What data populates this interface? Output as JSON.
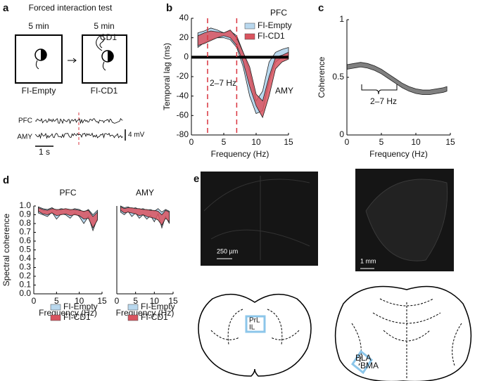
{
  "panel_a": {
    "letter": "a",
    "title": "Forced interaction test",
    "durations": [
      "5 min",
      "5 min"
    ],
    "stimulus": "CD1",
    "conditions": [
      "FI-Empty",
      "FI-CD1"
    ],
    "traces": [
      "PFC",
      "AMY"
    ],
    "scale_y": "4 mV",
    "scale_x": "1 s"
  },
  "chart_data": [
    {
      "type": "band",
      "panel_label": "b",
      "xlabel": "Frequency (Hz)",
      "ylabel": "Temporal lag (ms)",
      "xlim": [
        0,
        15
      ],
      "ylim": [
        -80,
        40
      ],
      "xticks": [
        0,
        5,
        10,
        15
      ],
      "yticks": [
        -80,
        -60,
        -40,
        -20,
        0,
        20,
        40
      ],
      "vlines": [
        2.5,
        7
      ],
      "vline_color": "#d9343f",
      "hline": 0,
      "legend_title": "PFC",
      "legend": "upper right",
      "annotations": [
        "2–7 Hz",
        "AMY"
      ],
      "x": [
        1,
        2,
        3,
        4,
        5,
        6,
        7,
        8,
        9,
        10,
        11,
        12,
        13,
        14,
        15
      ],
      "series": [
        {
          "name": "FI-Empty",
          "color": "#b9d8ee",
          "low": [
            10,
            15,
            18,
            20,
            20,
            18,
            10,
            -10,
            -40,
            -58,
            -55,
            -25,
            -5,
            0,
            2
          ],
          "high": [
            25,
            27,
            30,
            28,
            25,
            27,
            22,
            5,
            -15,
            -45,
            -35,
            -5,
            5,
            8,
            10
          ]
        },
        {
          "name": "FI-CD1",
          "color": "#d9545f",
          "low": [
            12,
            14,
            17,
            20,
            22,
            20,
            12,
            -5,
            -30,
            -50,
            -62,
            -40,
            -12,
            -5,
            -2
          ],
          "high": [
            22,
            25,
            27,
            26,
            25,
            28,
            20,
            5,
            -10,
            -38,
            -45,
            -20,
            0,
            2,
            5
          ]
        }
      ]
    },
    {
      "type": "band",
      "panel_label": "c",
      "xlabel": "Frequency (Hz)",
      "ylabel": "Coherence",
      "xlim": [
        0,
        15
      ],
      "ylim": [
        0,
        1
      ],
      "xticks": [
        0,
        5,
        10,
        15
      ],
      "yticks": [
        0,
        0.5,
        1
      ],
      "annotations": [
        "2–7 Hz"
      ],
      "x": [
        0,
        1,
        2,
        3,
        4,
        5,
        6,
        7,
        8,
        9,
        10,
        11,
        12,
        13,
        14,
        14.5
      ],
      "series": [
        {
          "color": "#808080",
          "low": [
            0.57,
            0.58,
            0.59,
            0.58,
            0.56,
            0.53,
            0.49,
            0.45,
            0.41,
            0.38,
            0.36,
            0.35,
            0.35,
            0.36,
            0.37,
            0.38
          ],
          "high": [
            0.61,
            0.62,
            0.63,
            0.62,
            0.6,
            0.57,
            0.53,
            0.49,
            0.45,
            0.42,
            0.4,
            0.39,
            0.39,
            0.4,
            0.41,
            0.42
          ]
        }
      ]
    },
    {
      "type": "band",
      "panel_label": "d",
      "title": "PFC",
      "xlabel": "Frequency (Hz)",
      "ylabel": "Spectral coherence",
      "xlim": [
        0,
        15
      ],
      "ylim": [
        0,
        1
      ],
      "xticks": [
        0,
        5,
        10,
        15
      ],
      "yticks": [
        {
          "value": 0,
          "label": "0.0"
        },
        {
          "value": 0.1,
          "label": "0.1"
        },
        {
          "value": 0.2,
          "label": "0.2"
        },
        {
          "value": 0.3,
          "label": "0.3"
        },
        {
          "value": 0.4,
          "label": "0.4"
        },
        {
          "value": 0.5,
          "label": "0.5"
        },
        {
          "value": 0.6,
          "label": "0.6"
        },
        {
          "value": 0.7,
          "label": "0.7"
        },
        {
          "value": 0.8,
          "label": "0.8"
        },
        {
          "value": 0.9,
          "label": "0.9"
        },
        {
          "value": 1,
          "label": "1.0"
        }
      ],
      "legend": "lower left",
      "x": [
        1,
        2,
        3,
        4,
        5,
        6,
        7,
        8,
        9,
        10,
        11,
        12,
        13,
        14
      ],
      "series": [
        {
          "name": "FI-Empty",
          "color": "#b9d8ee",
          "low": [
            0.92,
            0.9,
            0.88,
            0.93,
            0.85,
            0.91,
            0.9,
            0.86,
            0.92,
            0.88,
            0.8,
            0.88,
            0.72,
            0.86
          ],
          "high": [
            0.99,
            0.97,
            0.96,
            0.98,
            0.95,
            0.97,
            0.96,
            0.95,
            0.97,
            0.96,
            0.93,
            0.96,
            0.9,
            0.95
          ]
        },
        {
          "name": "FI-CD1",
          "color": "#d9545f",
          "low": [
            0.94,
            0.91,
            0.9,
            0.92,
            0.89,
            0.9,
            0.91,
            0.89,
            0.9,
            0.89,
            0.85,
            0.86,
            0.75,
            0.84
          ],
          "high": [
            0.98,
            0.96,
            0.95,
            0.97,
            0.96,
            0.96,
            0.97,
            0.96,
            0.96,
            0.95,
            0.94,
            0.95,
            0.88,
            0.93
          ]
        }
      ]
    },
    {
      "type": "band",
      "title": "AMY",
      "xlabel": "Frequency (Hz)",
      "xlim": [
        0,
        15
      ],
      "ylim": [
        0,
        1
      ],
      "xticks": [
        0,
        5,
        10,
        15
      ],
      "legend": "lower left",
      "x": [
        1,
        2,
        3,
        4,
        5,
        6,
        7,
        8,
        9,
        10,
        11,
        12,
        13,
        14
      ],
      "series": [
        {
          "name": "FI-Empty",
          "color": "#b9d8ee",
          "low": [
            0.93,
            0.9,
            0.94,
            0.88,
            0.92,
            0.86,
            0.9,
            0.85,
            0.89,
            0.82,
            0.91,
            0.75,
            0.88,
            0.8
          ],
          "high": [
            1,
            0.98,
            0.99,
            0.97,
            0.98,
            0.96,
            0.97,
            0.95,
            0.96,
            0.94,
            0.97,
            0.93,
            0.96,
            0.94
          ]
        },
        {
          "name": "FI-CD1",
          "color": "#d9545f",
          "low": [
            0.95,
            0.92,
            0.93,
            0.92,
            0.91,
            0.89,
            0.9,
            0.88,
            0.87,
            0.86,
            0.84,
            0.78,
            0.86,
            0.82
          ],
          "high": [
            0.99,
            0.97,
            0.98,
            0.98,
            0.97,
            0.97,
            0.96,
            0.96,
            0.95,
            0.95,
            0.94,
            0.9,
            0.95,
            0.93
          ]
        }
      ]
    }
  ],
  "panel_e": {
    "letter": "e",
    "scale_bars": [
      "250 µm",
      "1 mm"
    ],
    "regions": [
      "PrL",
      "IL",
      "BLA",
      "BMA"
    ]
  }
}
